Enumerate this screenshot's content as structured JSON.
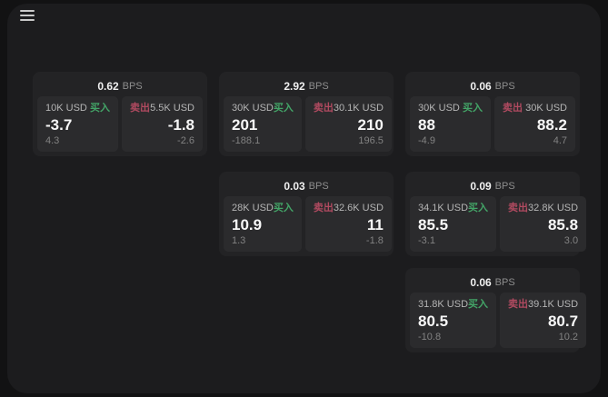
{
  "header": {
    "menu_icon": "hamburger-menu-icon"
  },
  "labels": {
    "buy": "买入",
    "sell": "卖出",
    "bps_unit": "BPS"
  },
  "colors": {
    "buy_accent": "#43a467",
    "sell_accent": "#b04a60",
    "panel_bg": "#1c1c1e",
    "card_bg": "#232325",
    "cell_bg": "#2b2b2d"
  },
  "cards": [
    {
      "grid": {
        "col": 0,
        "row": 0
      },
      "bps": "0.62",
      "buy": {
        "amount": "10K USD",
        "value": "-3.7",
        "delta": "4.3"
      },
      "sell": {
        "amount": "5.5K USD",
        "value": "-1.8",
        "delta": "-2.6"
      }
    },
    {
      "grid": {
        "col": 1,
        "row": 0
      },
      "bps": "2.92",
      "buy": {
        "amount": "30K USD",
        "value": "201",
        "delta": "-188.1"
      },
      "sell": {
        "amount": "30.1K USD",
        "value": "210",
        "delta": "196.5"
      }
    },
    {
      "grid": {
        "col": 2,
        "row": 0
      },
      "bps": "0.06",
      "buy": {
        "amount": "30K USD",
        "value": "88",
        "delta": "-4.9"
      },
      "sell": {
        "amount": "30K USD",
        "value": "88.2",
        "delta": "4.7"
      }
    },
    {
      "grid": {
        "col": 1,
        "row": 1
      },
      "bps": "0.03",
      "buy": {
        "amount": "28K USD",
        "value": "10.9",
        "delta": "1.3"
      },
      "sell": {
        "amount": "32.6K USD",
        "value": "11",
        "delta": "-1.8"
      }
    },
    {
      "grid": {
        "col": 2,
        "row": 1
      },
      "bps": "0.09",
      "buy": {
        "amount": "34.1K USD",
        "value": "85.5",
        "delta": "-3.1"
      },
      "sell": {
        "amount": "32.8K USD",
        "value": "85.8",
        "delta": "3.0"
      }
    },
    {
      "grid": {
        "col": 2,
        "row": 2
      },
      "bps": "0.06",
      "buy": {
        "amount": "31.8K USD",
        "value": "80.5",
        "delta": "-10.8"
      },
      "sell": {
        "amount": "39.1K USD",
        "value": "80.7",
        "delta": "10.2"
      }
    }
  ]
}
